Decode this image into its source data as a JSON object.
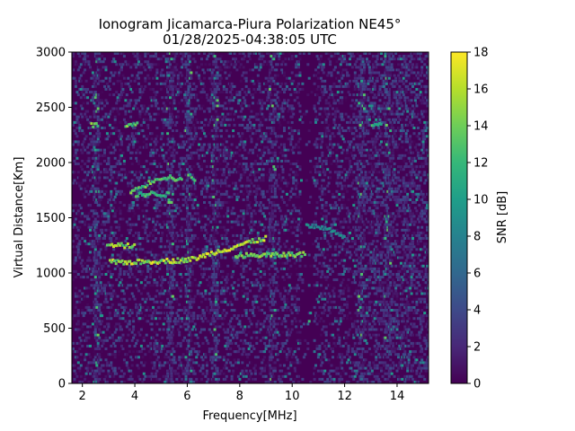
{
  "chart_data": {
    "type": "heatmap",
    "title_line1": "Ionogram Jicamarca-Piura Polarization NE45°",
    "title_line2": "01/28/2025-04:38:05 UTC",
    "xlabel": "Frequency[MHz]",
    "ylabel": "Virtual Distance[Km]",
    "xlim": [
      1.6,
      15.2
    ],
    "ylim": [
      0,
      3000
    ],
    "xticks": [
      2,
      4,
      6,
      8,
      10,
      12,
      14
    ],
    "yticks": [
      0,
      500,
      1000,
      1500,
      2000,
      2500,
      3000
    ],
    "colorbar": {
      "label": "SNR [dB]",
      "range": [
        0,
        18
      ],
      "ticks": [
        0,
        2,
        4,
        6,
        8,
        10,
        12,
        14,
        16,
        18
      ],
      "colormap": "viridis"
    },
    "features": [
      {
        "kind": "echo-trace",
        "points": [
          [
            3.0,
            1110
          ],
          [
            4.0,
            1110
          ],
          [
            5.0,
            1120
          ],
          [
            6.0,
            1130
          ],
          [
            6.5,
            1160
          ],
          [
            7.0,
            1200
          ],
          [
            7.5,
            1230
          ],
          [
            8.0,
            1270
          ],
          [
            8.5,
            1300
          ],
          [
            9.0,
            1330
          ]
        ],
        "snr": 18
      },
      {
        "kind": "echo-trace",
        "points": [
          [
            2.9,
            1260
          ],
          [
            3.5,
            1260
          ],
          [
            4.0,
            1250
          ]
        ],
        "snr": 17
      },
      {
        "kind": "echo-trace",
        "points": [
          [
            7.8,
            1170
          ],
          [
            8.5,
            1170
          ],
          [
            9.2,
            1175
          ],
          [
            10.0,
            1180
          ],
          [
            10.5,
            1180
          ]
        ],
        "snr": 16
      },
      {
        "kind": "echo-trace",
        "points": [
          [
            3.8,
            1750
          ],
          [
            4.3,
            1800
          ],
          [
            4.8,
            1870
          ],
          [
            5.3,
            1880
          ],
          [
            5.8,
            1840
          ]
        ],
        "snr": 15
      },
      {
        "kind": "echo-trace",
        "points": [
          [
            4.0,
            1720
          ],
          [
            4.7,
            1730
          ],
          [
            5.3,
            1720
          ]
        ],
        "snr": 14
      },
      {
        "kind": "echo-trace",
        "points": [
          [
            6.0,
            1900
          ],
          [
            6.3,
            1850
          ]
        ],
        "snr": 14
      },
      {
        "kind": "echo-trace",
        "points": [
          [
            10.5,
            1450
          ],
          [
            11.5,
            1400
          ],
          [
            12.0,
            1330
          ]
        ],
        "snr": 10
      },
      {
        "kind": "echo-trace",
        "points": [
          [
            2.3,
            2350
          ],
          [
            2.6,
            2350
          ]
        ],
        "snr": 16
      },
      {
        "kind": "echo-trace",
        "points": [
          [
            3.6,
            2350
          ],
          [
            4.1,
            2350
          ]
        ],
        "snr": 16
      },
      {
        "kind": "echo-trace",
        "points": [
          [
            13.0,
            2350
          ],
          [
            13.4,
            2350
          ]
        ],
        "snr": 14
      }
    ],
    "interference_bands_mhz": [
      2.5,
      5.3,
      6.0,
      7.0,
      9.2,
      10.5,
      12.6,
      13.6
    ],
    "quiet_band_mhz": [
      10.3,
      10.8
    ],
    "colors": {
      "stops": [
        "#440154",
        "#482878",
        "#3e4a89",
        "#31688e",
        "#26828e",
        "#1f9e89",
        "#35b779",
        "#6ece58",
        "#b5de2b",
        "#fde725"
      ]
    }
  }
}
